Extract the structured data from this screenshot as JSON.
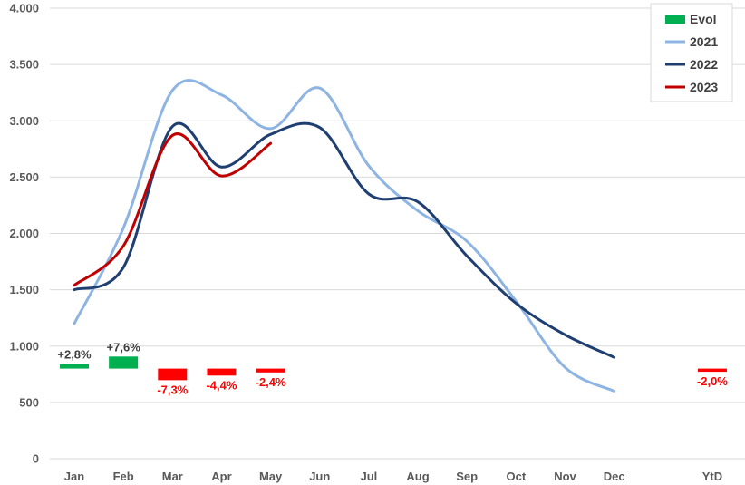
{
  "chart_data": {
    "type": "line",
    "title": "",
    "xlabel": "",
    "ylabel": "",
    "categories": [
      "Jan",
      "Feb",
      "Mar",
      "Apr",
      "May",
      "Jun",
      "Jul",
      "Aug",
      "Sep",
      "Oct",
      "Nov",
      "Dec",
      "",
      "YtD"
    ],
    "ylim": [
      0,
      4000
    ],
    "y_ticks": [
      0,
      500,
      1000,
      1500,
      2000,
      2500,
      3000,
      3500,
      4000
    ],
    "y_tick_labels": [
      "0",
      "500",
      "1.000",
      "1.500",
      "2.000",
      "2.500",
      "3.000",
      "3.500",
      "4.000"
    ],
    "grid": true,
    "legend_position": "top-right",
    "series": [
      {
        "name": "2021",
        "color": "#8EB4E3",
        "values": [
          1200,
          2050,
          3270,
          3230,
          2930,
          3290,
          2600,
          2200,
          1930,
          1400,
          810,
          600,
          null,
          null
        ]
      },
      {
        "name": "2022",
        "color": "#1F3F73",
        "values": [
          1500,
          1700,
          2950,
          2590,
          2880,
          2940,
          2350,
          2280,
          1800,
          1380,
          1100,
          900,
          null,
          null
        ]
      },
      {
        "name": "2023",
        "color": "#C00000",
        "values": [
          1540,
          1890,
          2870,
          2510,
          2800,
          null,
          null,
          null,
          null,
          null,
          null,
          null,
          null,
          null
        ]
      }
    ],
    "evol": {
      "name": "Evol",
      "baseline": 800,
      "bars": [
        {
          "category": "Jan",
          "value": 2.8,
          "label": "+2,8%"
        },
        {
          "category": "Feb",
          "value": 7.6,
          "label": "+7,6%"
        },
        {
          "category": "Mar",
          "value": -7.3,
          "label": "-7,3%"
        },
        {
          "category": "Apr",
          "value": -4.4,
          "label": "-4,4%"
        },
        {
          "category": "May",
          "value": -2.4,
          "label": "-2,4%"
        },
        {
          "category": "YtD",
          "value": -2.0,
          "label": "-2,0%"
        }
      ],
      "positive_color": "#00B050",
      "negative_color": "#FF0000",
      "positive_label_color": "#404040",
      "negative_label_color": "#FF0000"
    },
    "legend": [
      {
        "name": "Evol",
        "color": "#00B050",
        "kind": "bar"
      },
      {
        "name": "2021",
        "color": "#8EB4E3",
        "kind": "line"
      },
      {
        "name": "2022",
        "color": "#1F3F73",
        "kind": "line"
      },
      {
        "name": "2023",
        "color": "#C00000",
        "kind": "line"
      }
    ]
  }
}
